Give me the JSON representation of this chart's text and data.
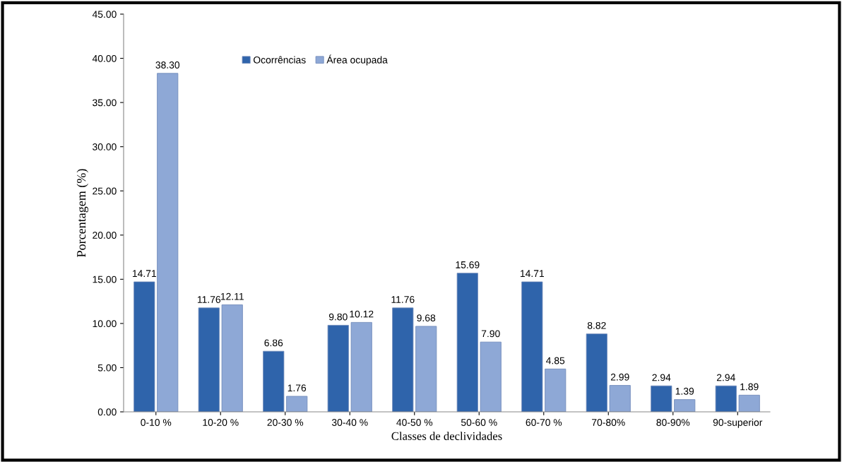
{
  "chart_data": {
    "type": "bar",
    "xlabel": "Classes de declividades",
    "ylabel": "Porcentagem (%)",
    "categories": [
      "0-10 %",
      "10-20 %",
      "20-30 %",
      "30-40 %",
      "40-50 %",
      "50-60 %",
      "60-70 %",
      "70-80%",
      "80-90%",
      "90-superior"
    ],
    "series": [
      {
        "name": "Ocorrências",
        "color": "#2f64ab",
        "values": [
          14.71,
          11.76,
          6.86,
          9.8,
          11.76,
          15.69,
          14.71,
          8.82,
          2.94,
          2.94
        ],
        "value_labels": [
          "14.71",
          "11.76",
          "6.86",
          "9.80",
          "11.76",
          "15.69",
          "14.71",
          "8.82",
          "2.94",
          "2.94"
        ]
      },
      {
        "name": "Área ocupada",
        "color": "#8ea8d6",
        "values": [
          38.3,
          12.11,
          1.76,
          10.12,
          9.68,
          7.9,
          4.85,
          2.99,
          1.39,
          1.89
        ],
        "value_labels": [
          "38.30",
          "12.11",
          "1.76",
          "10.12",
          "9.68",
          "7.90",
          "4.85",
          "2.99",
          "1.39",
          "1.89"
        ]
      }
    ],
    "ylim": [
      0,
      45
    ],
    "yticks": [
      {
        "value": 0,
        "label": "0.00"
      },
      {
        "value": 5,
        "label": "5.00"
      },
      {
        "value": 10,
        "label": "10.00"
      },
      {
        "value": 15,
        "label": "15.00"
      },
      {
        "value": 20,
        "label": "20.00"
      },
      {
        "value": 25,
        "label": "25.00"
      },
      {
        "value": 30,
        "label": "30.00"
      },
      {
        "value": 35,
        "label": "35.00"
      },
      {
        "value": 40,
        "label": "40.00"
      },
      {
        "value": 45,
        "label": "45.00"
      }
    ],
    "grid": false,
    "legend": "top left"
  }
}
